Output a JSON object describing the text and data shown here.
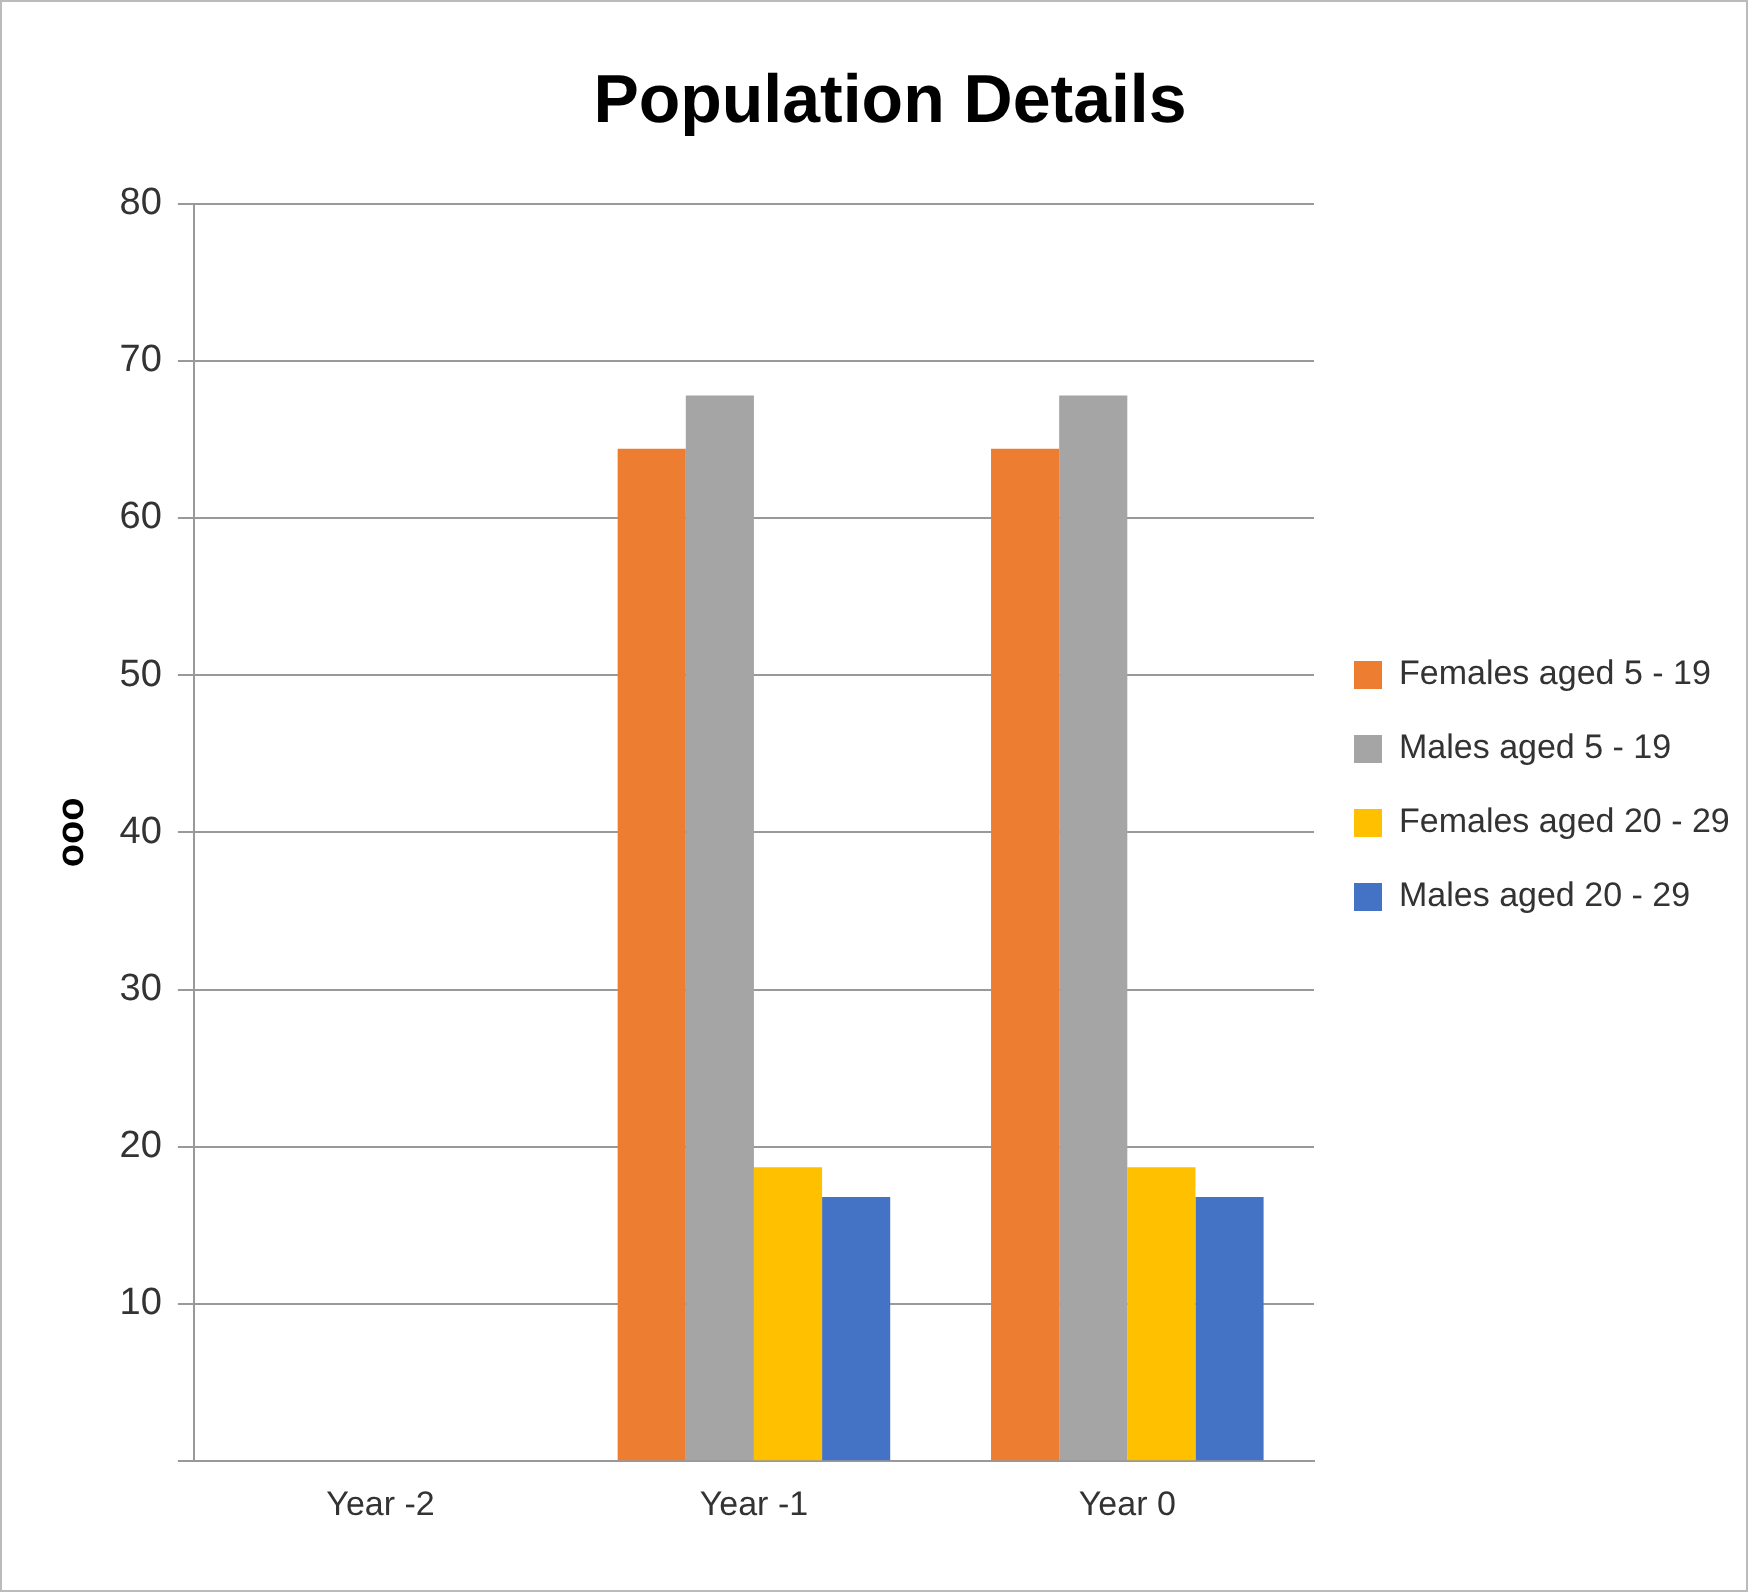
{
  "chart_data": {
    "type": "bar",
    "title": "Population Details",
    "ylabel": "ooo",
    "categories": [
      "Year -2",
      "Year -1",
      "Year 0"
    ],
    "series": [
      {
        "name": "Females aged 5 - 19",
        "color": "#ed7d31",
        "values": [
          0,
          64.4,
          64.4
        ]
      },
      {
        "name": "Males aged 5 - 19",
        "color": "#a5a5a5",
        "values": [
          0,
          67.8,
          67.8
        ]
      },
      {
        "name": "Females aged 20 - 29",
        "color": "#ffc000",
        "values": [
          0,
          18.7,
          18.7
        ]
      },
      {
        "name": "Males aged 20 - 29",
        "color": "#4472c4",
        "values": [
          0,
          16.8,
          16.8
        ]
      }
    ],
    "ylim": [
      0,
      80
    ],
    "yticks": [
      {
        "value": 0,
        "label": null
      },
      10,
      20,
      30,
      40,
      50,
      60,
      70,
      80
    ],
    "grid": "y",
    "legend": "right"
  }
}
